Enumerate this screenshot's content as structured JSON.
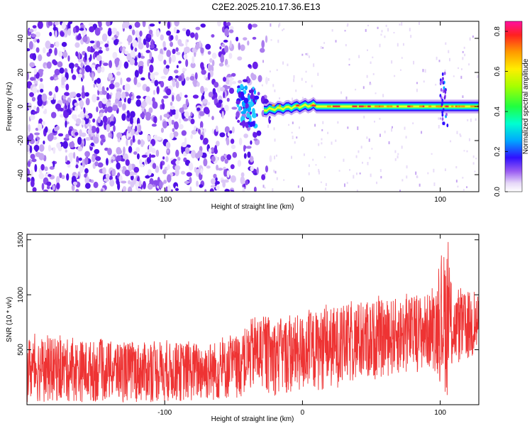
{
  "title": "C2E2.2025.210.17.36.E13",
  "chart_data": [
    {
      "type": "heatmap",
      "xlabel": "Height of straight line (km)",
      "ylabel": "Frequency (Hz)",
      "xlim": [
        -200,
        128
      ],
      "ylim": [
        -50,
        50
      ],
      "xticks": [
        -100,
        0,
        100
      ],
      "yticks": [
        -40,
        -20,
        0,
        20,
        40
      ],
      "colorbar": {
        "label": "Normalized spectral amplitude",
        "range": [
          0,
          0.85
        ],
        "ticks": [
          0.0,
          0.2,
          0.4,
          0.6,
          0.8
        ]
      },
      "features": {
        "noise_region_km": [
          -200,
          -45
        ],
        "signal_band_start_km": -28,
        "signal_band_center_hz": 0,
        "burst_km": -40,
        "spike_km": 102
      }
    },
    {
      "type": "line",
      "xlabel": "Height of straight line (km)",
      "ylabel": "SNR (10 * v/v)",
      "xlim": [
        -200,
        128
      ],
      "ylim": [
        0,
        1550
      ],
      "xticks": [
        -100,
        0,
        100
      ],
      "yticks": [
        500,
        1000,
        1500
      ],
      "color": "#ee3333",
      "trend": {
        "x": [
          -200,
          -150,
          -100,
          -60,
          -45,
          -35,
          -20,
          0,
          25,
          50,
          75,
          95,
          105,
          110,
          128
        ],
        "upper": [
          620,
          580,
          560,
          580,
          640,
          820,
          780,
          820,
          900,
          940,
          980,
          1020,
          1500,
          1000,
          1050
        ],
        "lower": [
          20,
          20,
          20,
          30,
          60,
          120,
          80,
          100,
          150,
          220,
          280,
          320,
          60,
          350,
          400
        ]
      }
    }
  ]
}
